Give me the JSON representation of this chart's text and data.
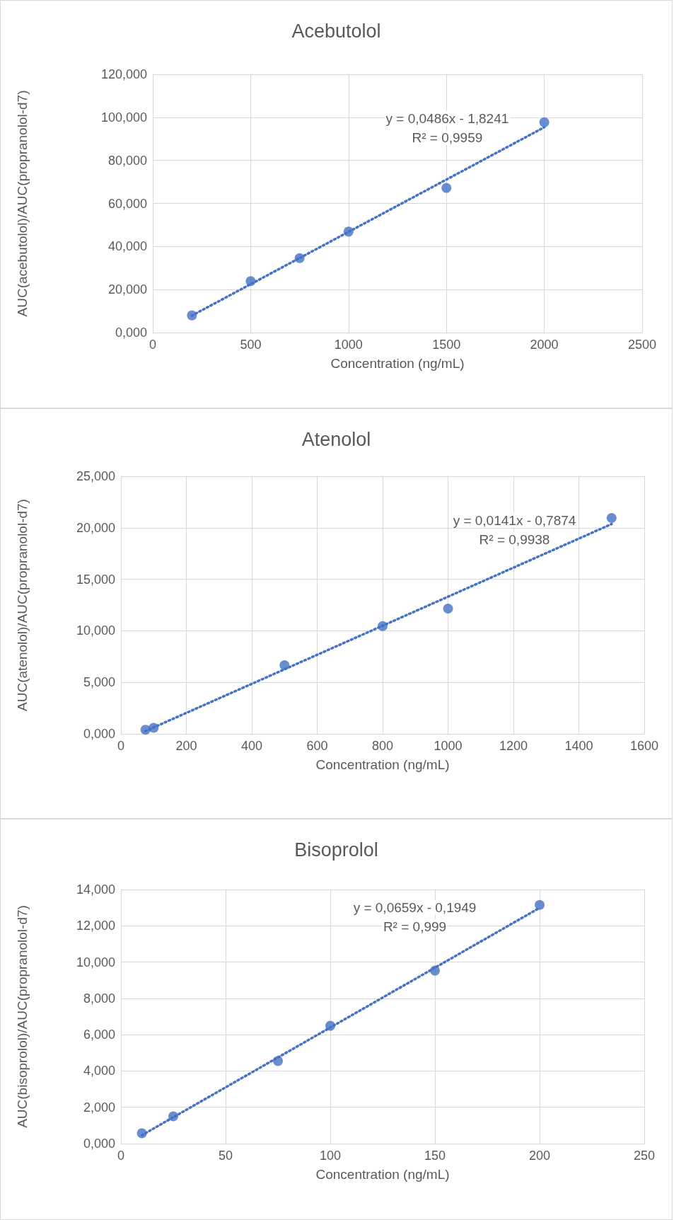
{
  "chart_data": [
    {
      "type": "scatter",
      "title": "Acebutolol",
      "xlabel": "Concentration (ng/mL)",
      "ylabel": "AUC(acebutolol)/AUC(propranolol-d7)",
      "marker": "circle",
      "grid": true,
      "x": [
        200,
        500,
        750,
        1000,
        1500,
        2000
      ],
      "series": [
        {
          "color": "#4472c4",
          "values": [
            8.0,
            23.9,
            34.6,
            46.9,
            67.2,
            97.7
          ]
        },
        {
          "type": "line",
          "color": "#4472c4",
          "line_style": "dotted",
          "marker": "none",
          "x": [
            200,
            2000
          ],
          "values": [
            7.9,
            95.4
          ]
        }
      ],
      "xlim": [
        0,
        2500
      ],
      "xticks": [
        0,
        500,
        1000,
        1500,
        2000,
        2500
      ],
      "ylim": [
        0,
        120
      ],
      "yticks": [
        {
          "value": 0,
          "label": "0,000"
        },
        {
          "value": 20,
          "label": "20,000"
        },
        {
          "value": 40,
          "label": "40,000"
        },
        {
          "value": 60,
          "label": "60,000"
        },
        {
          "value": 80,
          "label": "80,000"
        },
        {
          "value": 100,
          "label": "100,000"
        },
        {
          "value": 120,
          "label": "120,000"
        }
      ],
      "annotations": [
        "y = 0,0486x - 1,8241",
        "R² = 0,9959"
      ]
    },
    {
      "type": "scatter",
      "title": "Atenolol",
      "xlabel": "Concentration (ng/mL)",
      "ylabel": "AUC(atenolol)/AUC(propranolol-d7)",
      "marker": "circle",
      "grid": true,
      "x": [
        75,
        100,
        500,
        800,
        1000,
        1500
      ],
      "series": [
        {
          "color": "#4472c4",
          "values": [
            0.4,
            0.58,
            6.66,
            10.46,
            12.16,
            20.95
          ]
        },
        {
          "type": "line",
          "color": "#4472c4",
          "line_style": "dotted",
          "marker": "none",
          "x": [
            75,
            1500
          ],
          "values": [
            0.27,
            20.36
          ]
        }
      ],
      "xlim": [
        0,
        1600
      ],
      "xticks": [
        0,
        200,
        400,
        600,
        800,
        1000,
        1200,
        1400,
        1600
      ],
      "ylim": [
        0,
        25
      ],
      "yticks": [
        {
          "value": 0,
          "label": "0,000"
        },
        {
          "value": 5,
          "label": "5,000"
        },
        {
          "value": 10,
          "label": "10,000"
        },
        {
          "value": 15,
          "label": "15,000"
        },
        {
          "value": 20,
          "label": "20,000"
        },
        {
          "value": 25,
          "label": "25,000"
        }
      ],
      "annotations": [
        "y = 0,0141x - 0,7874",
        "R² = 0,9938"
      ]
    },
    {
      "type": "scatter",
      "title": "Bisoprolol",
      "xlabel": "Concentration (ng/mL)",
      "ylabel": "AUC(bisoprolol)/AUC(propranolol-d7)",
      "marker": "circle",
      "grid": true,
      "x": [
        10,
        25,
        75,
        100,
        150,
        200
      ],
      "series": [
        {
          "color": "#4472c4",
          "values": [
            0.57,
            1.5,
            4.55,
            6.49,
            9.53,
            13.15
          ]
        },
        {
          "type": "line",
          "color": "#4472c4",
          "line_style": "dotted",
          "marker": "none",
          "x": [
            10,
            200
          ],
          "values": [
            0.46,
            12.99
          ]
        }
      ],
      "xlim": [
        0,
        250
      ],
      "xticks": [
        0,
        50,
        100,
        150,
        200,
        250
      ],
      "ylim": [
        0,
        14
      ],
      "yticks": [
        {
          "value": 0,
          "label": "0,000"
        },
        {
          "value": 2,
          "label": "2,000"
        },
        {
          "value": 4,
          "label": "4,000"
        },
        {
          "value": 6,
          "label": "6,000"
        },
        {
          "value": 8,
          "label": "8,000"
        },
        {
          "value": 10,
          "label": "10,000"
        },
        {
          "value": 12,
          "label": "12,000"
        },
        {
          "value": 14,
          "label": "14,000"
        }
      ],
      "annotations": [
        "y = 0,0659x - 0,1949",
        "R² = 0,999"
      ]
    }
  ]
}
